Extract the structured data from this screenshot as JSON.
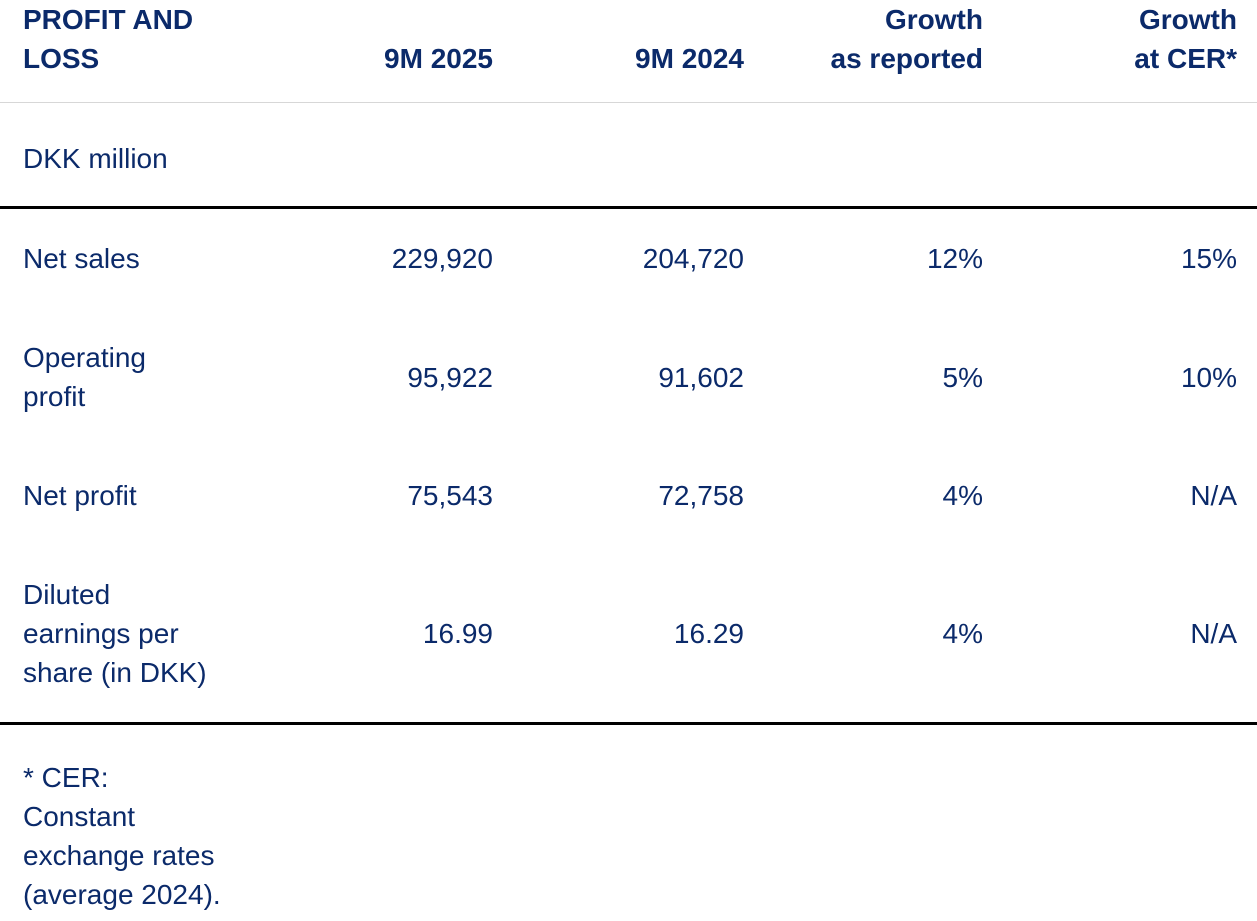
{
  "table": {
    "title": "PROFIT AND\nLOSS",
    "header": {
      "col_2025": "9M 2025",
      "col_2024": "9M 2024",
      "col_growth_reported": "Growth\nas reported",
      "col_growth_cer": "Growth\nat CER*"
    },
    "unit_label": "DKK million",
    "rows": [
      {
        "label": "Net sales",
        "v2025": "229,920",
        "v2024": "204,720",
        "growth_reported": "12%",
        "growth_cer": "15%"
      },
      {
        "label": "Operating\nprofit",
        "v2025": "95,922",
        "v2024": "91,602",
        "growth_reported": "5%",
        "growth_cer": "10%"
      },
      {
        "label": "Net profit",
        "v2025": "75,543",
        "v2024": "72,758",
        "growth_reported": "4%",
        "growth_cer": "N/A"
      },
      {
        "label": "Diluted\nearnings per\nshare (in DKK)",
        "v2025": "16.99",
        "v2024": "16.29",
        "growth_reported": "4%",
        "growth_cer": "N/A"
      }
    ]
  },
  "footnote": "* CER:\nConstant\nexchange rates\n(average 2024).",
  "colors": {
    "text": "#0b2a6a",
    "heavy_rule": "#000000",
    "light_rule": "#d7d7d7",
    "background": "#ffffff"
  }
}
